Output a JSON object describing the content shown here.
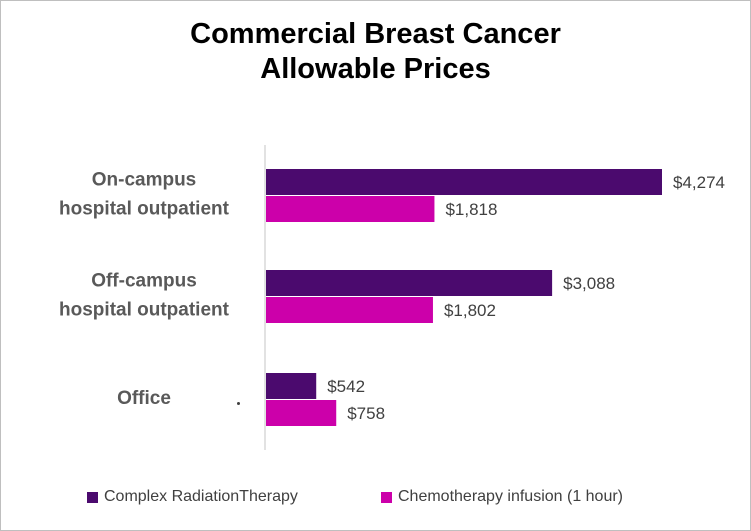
{
  "chart_data": {
    "type": "bar",
    "orientation": "horizontal",
    "title_lines": [
      "Commercial Breast Cancer",
      "Allowable Prices"
    ],
    "categories": [
      [
        "On-campus",
        "hospital outpatient"
      ],
      [
        "Off-campus",
        "hospital outpatient"
      ],
      [
        "Office"
      ]
    ],
    "series": [
      {
        "name": "Complex RadiationTherapy",
        "color": "#4b0a6e",
        "values": [
          4274,
          3088,
          542
        ],
        "labels": [
          "$4,274",
          "$3,088",
          "$542"
        ]
      },
      {
        "name": "Chemotherapy infusion (1 hour)",
        "color": "#cc00aa",
        "values": [
          1818,
          1802,
          758
        ],
        "labels": [
          "$1,818",
          "$1,802",
          "$758"
        ]
      }
    ],
    "xlim": [
      0,
      4500
    ],
    "grid": false,
    "legend": "bottom",
    "axis_color": "#d9d9d9"
  }
}
